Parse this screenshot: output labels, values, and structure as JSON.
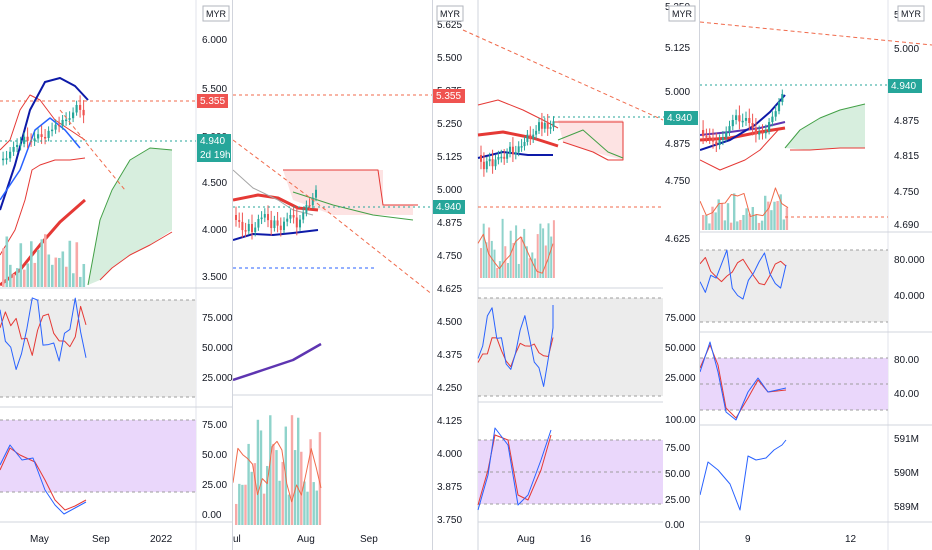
{
  "colors": {
    "up": "#26a69a",
    "down": "#ef5350",
    "blue": "#2962ff",
    "navy": "#0d1aa8",
    "red_line": "#e53935",
    "orange_dash": "#f06a4b",
    "grid": "#e0e3eb",
    "text": "#131722",
    "cloud_green": "#d7eede",
    "cloud_red": "#fde3e3",
    "band_grey": "#ececec",
    "band_purple": "#ead7fb",
    "purple_line": "#5e35b1"
  },
  "price_tag": {
    "main": "4.940",
    "countdown": "2d 19h",
    "resistance": "5.355"
  },
  "panels": [
    {
      "id": "p1",
      "currency": "MYR",
      "x_labels": [
        "May",
        "Sep",
        "2022"
      ],
      "price_axis": [
        "6.000",
        "5.500",
        "5.000",
        "4.500",
        "4.000",
        "3.500"
      ],
      "sub1_axis": [
        "75.000",
        "50.000",
        "25.000"
      ],
      "sub2_axis": [
        "75.00",
        "50.00",
        "25.00",
        "0.00"
      ]
    },
    {
      "id": "p2",
      "currency": "MYR",
      "x_labels": [
        "ul",
        "Aug",
        "Sep"
      ],
      "price_axis": [
        "5.625",
        "5.500",
        "5.375",
        "5.250",
        "5.125",
        "5.000",
        "4.875",
        "4.750",
        "4.625",
        "4.500",
        "4.375",
        "4.250",
        "4.125",
        "4.000",
        "3.875",
        "3.750"
      ]
    },
    {
      "id": "p3",
      "currency": "MYR",
      "x_labels": [
        "Aug",
        "16"
      ],
      "price_axis": [
        "5.250",
        "5.125",
        "5.000",
        "4.875",
        "4.750",
        "4.625"
      ],
      "sub1_axis": [
        "75.000",
        "50.000",
        "25.000"
      ],
      "sub2_axis": [
        "100.00",
        "75.00",
        "50.00",
        "25.00",
        "0.00"
      ]
    },
    {
      "id": "p4",
      "currency": "MYR",
      "x_labels": [
        "9",
        "12"
      ],
      "price_axis": [
        "5",
        "5.000",
        "4.875",
        "4.815",
        "4.750",
        "4.690"
      ],
      "sub1_axis": [
        "80.000",
        "40.000"
      ],
      "sub2_axis": [
        "80.00",
        "40.00"
      ],
      "sub3_axis": [
        "591M",
        "590M",
        "589M"
      ]
    }
  ],
  "chart_data": [
    {
      "type": "line",
      "title": "",
      "currency": "MYR",
      "x": [
        "May",
        "Sep",
        "2022"
      ],
      "ylim": [
        3.5,
        6.0
      ],
      "series": [],
      "last_price": 4.94,
      "marked_level": 5.355,
      "indicators": [
        {
          "type": "line",
          "yticks": [
            75,
            50,
            25
          ],
          "band": [
            20,
            80
          ]
        },
        {
          "type": "line",
          "yticks": [
            75,
            50,
            25,
            0
          ],
          "band": [
            20,
            80
          ]
        }
      ]
    },
    {
      "type": "line",
      "title": "",
      "currency": "MYR",
      "x": [
        "ul",
        "Aug",
        "Sep"
      ],
      "ylim": [
        3.75,
        5.625
      ],
      "series": [],
      "last_price": 4.94,
      "marked_level": 5.355
    },
    {
      "type": "line",
      "title": "",
      "currency": "MYR",
      "x": [
        "Aug",
        "16"
      ],
      "ylim": [
        4.625,
        5.25
      ],
      "series": [],
      "last_price": 4.94,
      "indicators": [
        {
          "type": "line",
          "yticks": [
            75,
            50,
            25
          ],
          "band": [
            20,
            80
          ]
        },
        {
          "type": "line",
          "yticks": [
            100,
            75,
            50,
            25,
            0
          ],
          "band": [
            20,
            80
          ]
        }
      ]
    },
    {
      "type": "line",
      "title": "",
      "currency": "MYR",
      "x": [
        "9",
        "12"
      ],
      "ylim": [
        4.69,
        5.0
      ],
      "series": [],
      "last_price": 4.94,
      "indicators": [
        {
          "type": "line",
          "yticks": [
            80,
            40
          ],
          "band": [
            20,
            80
          ]
        },
        {
          "type": "line",
          "yticks": [
            80,
            40
          ],
          "band": [
            20,
            80
          ]
        },
        {
          "type": "line",
          "yticks": [
            "591M",
            "590M",
            "589M"
          ]
        }
      ]
    }
  ]
}
